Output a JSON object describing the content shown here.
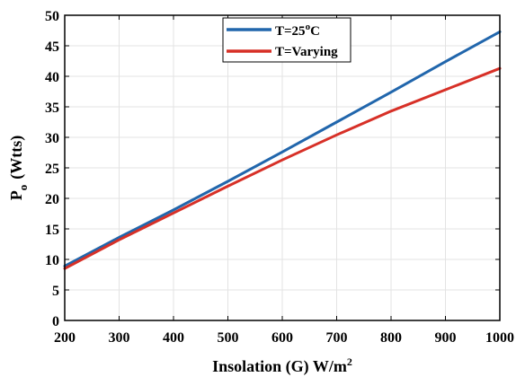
{
  "chart_data": {
    "type": "line",
    "title": "",
    "xlabel": "Insolation (G) W/m",
    "xlabel_sup": "2",
    "ylabel": "P",
    "ylabel_sub": "o",
    "ylabel_suffix": "(Wtts)",
    "xlim": [
      200,
      1000
    ],
    "ylim": [
      0,
      50
    ],
    "xticks": [
      200,
      300,
      400,
      500,
      600,
      700,
      800,
      900,
      1000
    ],
    "yticks": [
      0,
      5,
      10,
      15,
      20,
      25,
      30,
      35,
      40,
      45,
      50
    ],
    "grid": true,
    "legend_position": "top-center",
    "series": [
      {
        "name": "T=25°C",
        "legend_main": "T=25",
        "legend_sup": "o",
        "legend_suffix": "C",
        "color": "#2166ac",
        "x": [
          200,
          300,
          400,
          500,
          600,
          700,
          800,
          900,
          1000
        ],
        "y": [
          8.9,
          13.6,
          18.1,
          22.8,
          27.6,
          32.5,
          37.4,
          42.4,
          47.3
        ]
      },
      {
        "name": "T=Varying",
        "legend_main": "T=Varying",
        "color": "#d73027",
        "x": [
          200,
          300,
          400,
          500,
          600,
          700,
          800,
          900,
          1000
        ],
        "y": [
          8.5,
          13.2,
          17.6,
          22.0,
          26.3,
          30.4,
          34.3,
          37.8,
          41.3
        ]
      }
    ]
  }
}
